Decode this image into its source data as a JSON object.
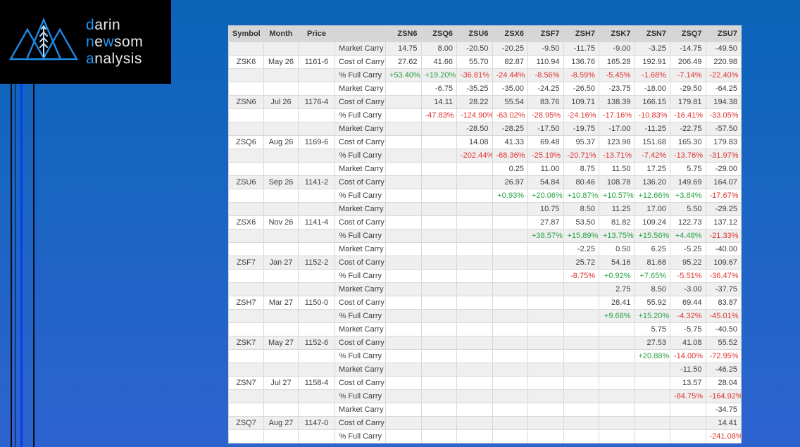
{
  "logo": {
    "lines": [
      {
        "parts": [
          {
            "text": "d",
            "color": "accent"
          },
          {
            "text": "arin",
            "color": "light"
          }
        ]
      },
      {
        "parts": [
          {
            "text": "n",
            "color": "accent"
          },
          {
            "text": "e",
            "color": "light"
          },
          {
            "text": "w",
            "color": "accent"
          },
          {
            "text": "som",
            "color": "light"
          }
        ]
      },
      {
        "parts": [
          {
            "text": "a",
            "color": "accent"
          },
          {
            "text": "nalysis",
            "color": "light"
          }
        ]
      }
    ],
    "accent_color": "#2196f3",
    "light_color": "#e9e9e9"
  },
  "table": {
    "columns": [
      "Symbol",
      "Month",
      "Price",
      "",
      "ZSN6",
      "ZSQ6",
      "ZSU6",
      "ZSX6",
      "ZSF7",
      "ZSH7",
      "ZSK7",
      "ZSN7",
      "ZSQ7",
      "ZSU7"
    ],
    "row_labels": {
      "market": "Market Carry",
      "cost": "Cost of Carry",
      "full": "% Full Carry"
    },
    "colors": {
      "positive": "#27a145",
      "negative": "#e03131",
      "text": "#3c3c3c"
    },
    "groups": [
      {
        "symbol": "ZSK6",
        "month": "May 26",
        "price": "1161-6",
        "market": [
          "14.75",
          "8.00",
          "-20.50",
          "-20.25",
          "-9.50",
          "-11.75",
          "-9.00",
          "-3.25",
          "-14.75",
          "-49.50"
        ],
        "cost": [
          "27.62",
          "41.66",
          "55.70",
          "82.87",
          "110.94",
          "136.76",
          "165.28",
          "192.91",
          "206.49",
          "220.98"
        ],
        "full": [
          "+53.40%",
          "+19.20%",
          "-36.81%",
          "-24.44%",
          "-8.56%",
          "-8.59%",
          "-5.45%",
          "-1.68%",
          "-7.14%",
          "-22.40%"
        ]
      },
      {
        "symbol": "ZSN6",
        "month": "Jul 26",
        "price": "1176-4",
        "market": [
          "",
          "-6.75",
          "-35.25",
          "-35.00",
          "-24.25",
          "-26.50",
          "-23.75",
          "-18.00",
          "-29.50",
          "-64.25"
        ],
        "cost": [
          "",
          "14.11",
          "28.22",
          "55.54",
          "83.76",
          "109.71",
          "138.39",
          "166.15",
          "179.81",
          "194.38"
        ],
        "full": [
          "",
          "-47.83%",
          "-124.90%",
          "-63.02%",
          "-28.95%",
          "-24.16%",
          "-17.16%",
          "-10.83%",
          "-16.41%",
          "-33.05%"
        ]
      },
      {
        "symbol": "ZSQ6",
        "month": "Aug 26",
        "price": "1169-6",
        "market": [
          "",
          "",
          "-28.50",
          "-28.25",
          "-17.50",
          "-19.75",
          "-17.00",
          "-11.25",
          "-22.75",
          "-57.50"
        ],
        "cost": [
          "",
          "",
          "14.08",
          "41.33",
          "69.48",
          "95.37",
          "123.98",
          "151.68",
          "165.30",
          "179.83"
        ],
        "full": [
          "",
          "",
          "-202.44%",
          "-68.36%",
          "-25.19%",
          "-20.71%",
          "-13.71%",
          "-7.42%",
          "-13.76%",
          "-31.97%"
        ]
      },
      {
        "symbol": "ZSU6",
        "month": "Sep 26",
        "price": "1141-2",
        "market": [
          "",
          "",
          "",
          "0.25",
          "11.00",
          "8.75",
          "11.50",
          "17.25",
          "5.75",
          "-29.00"
        ],
        "cost": [
          "",
          "",
          "",
          "26.97",
          "54.84",
          "80.46",
          "108.78",
          "136.20",
          "149.69",
          "164.07"
        ],
        "full": [
          "",
          "",
          "",
          "+0.93%",
          "+20.06%",
          "+10.87%",
          "+10.57%",
          "+12.66%",
          "+3.84%",
          "-17.67%"
        ]
      },
      {
        "symbol": "ZSX6",
        "month": "Nov 26",
        "price": "1141-4",
        "market": [
          "",
          "",
          "",
          "",
          "10.75",
          "8.50",
          "11.25",
          "17.00",
          "5.50",
          "-29.25"
        ],
        "cost": [
          "",
          "",
          "",
          "",
          "27.87",
          "53.50",
          "81.82",
          "109.24",
          "122.73",
          "137.12"
        ],
        "full": [
          "",
          "",
          "",
          "",
          "+38.57%",
          "+15.89%",
          "+13.75%",
          "+15.56%",
          "+4.48%",
          "-21.33%"
        ]
      },
      {
        "symbol": "ZSF7",
        "month": "Jan 27",
        "price": "1152-2",
        "market": [
          "",
          "",
          "",
          "",
          "",
          "-2.25",
          "0.50",
          "6.25",
          "-5.25",
          "-40.00"
        ],
        "cost": [
          "",
          "",
          "",
          "",
          "",
          "25.72",
          "54.16",
          "81.68",
          "95.22",
          "109.67"
        ],
        "full": [
          "",
          "",
          "",
          "",
          "",
          "-8.75%",
          "+0.92%",
          "+7.65%",
          "-5.51%",
          "-36.47%"
        ]
      },
      {
        "symbol": "ZSH7",
        "month": "Mar 27",
        "price": "1150-0",
        "market": [
          "",
          "",
          "",
          "",
          "",
          "",
          "2.75",
          "8.50",
          "-3.00",
          "-37.75"
        ],
        "cost": [
          "",
          "",
          "",
          "",
          "",
          "",
          "28.41",
          "55.92",
          "69.44",
          "83.87"
        ],
        "full": [
          "",
          "",
          "",
          "",
          "",
          "",
          "+9.68%",
          "+15.20%",
          "-4.32%",
          "-45.01%"
        ]
      },
      {
        "symbol": "ZSK7",
        "month": "May 27",
        "price": "1152-6",
        "market": [
          "",
          "",
          "",
          "",
          "",
          "",
          "",
          "5.75",
          "-5.75",
          "-40.50"
        ],
        "cost": [
          "",
          "",
          "",
          "",
          "",
          "",
          "",
          "27.53",
          "41.08",
          "55.52"
        ],
        "full": [
          "",
          "",
          "",
          "",
          "",
          "",
          "",
          "+20.88%",
          "-14.00%",
          "-72.95%"
        ]
      },
      {
        "symbol": "ZSN7",
        "month": "Jul 27",
        "price": "1158-4",
        "market": [
          "",
          "",
          "",
          "",
          "",
          "",
          "",
          "",
          "-11.50",
          "-46.25"
        ],
        "cost": [
          "",
          "",
          "",
          "",
          "",
          "",
          "",
          "",
          "13.57",
          "28.04"
        ],
        "full": [
          "",
          "",
          "",
          "",
          "",
          "",
          "",
          "",
          "-84.75%",
          "-164.92%"
        ]
      },
      {
        "symbol": "ZSQ7",
        "month": "Aug 27",
        "price": "1147-0",
        "market": [
          "",
          "",
          "",
          "",
          "",
          "",
          "",
          "",
          "",
          "-34.75"
        ],
        "cost": [
          "",
          "",
          "",
          "",
          "",
          "",
          "",
          "",
          "",
          "14.41"
        ],
        "full": [
          "",
          "",
          "",
          "",
          "",
          "",
          "",
          "",
          "",
          "-241.08%"
        ]
      }
    ]
  }
}
